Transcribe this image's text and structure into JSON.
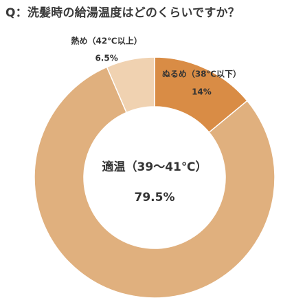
{
  "chart_data": {
    "type": "pie",
    "title": "Q：洗髪時の給湯温度はどのくらいですか？",
    "slices": [
      {
        "label": "ぬるめ（38℃以下）",
        "value": 14,
        "value_label": "14%",
        "color": "#d98c45"
      },
      {
        "label": "適温（39～41℃）",
        "value": 79.5,
        "value_label": "79.5%",
        "color": "#e0b07e"
      },
      {
        "label": "熱め（42℃以上）",
        "value": 6.5,
        "value_label": "6.5%",
        "color": "#f0d2b1"
      }
    ]
  }
}
